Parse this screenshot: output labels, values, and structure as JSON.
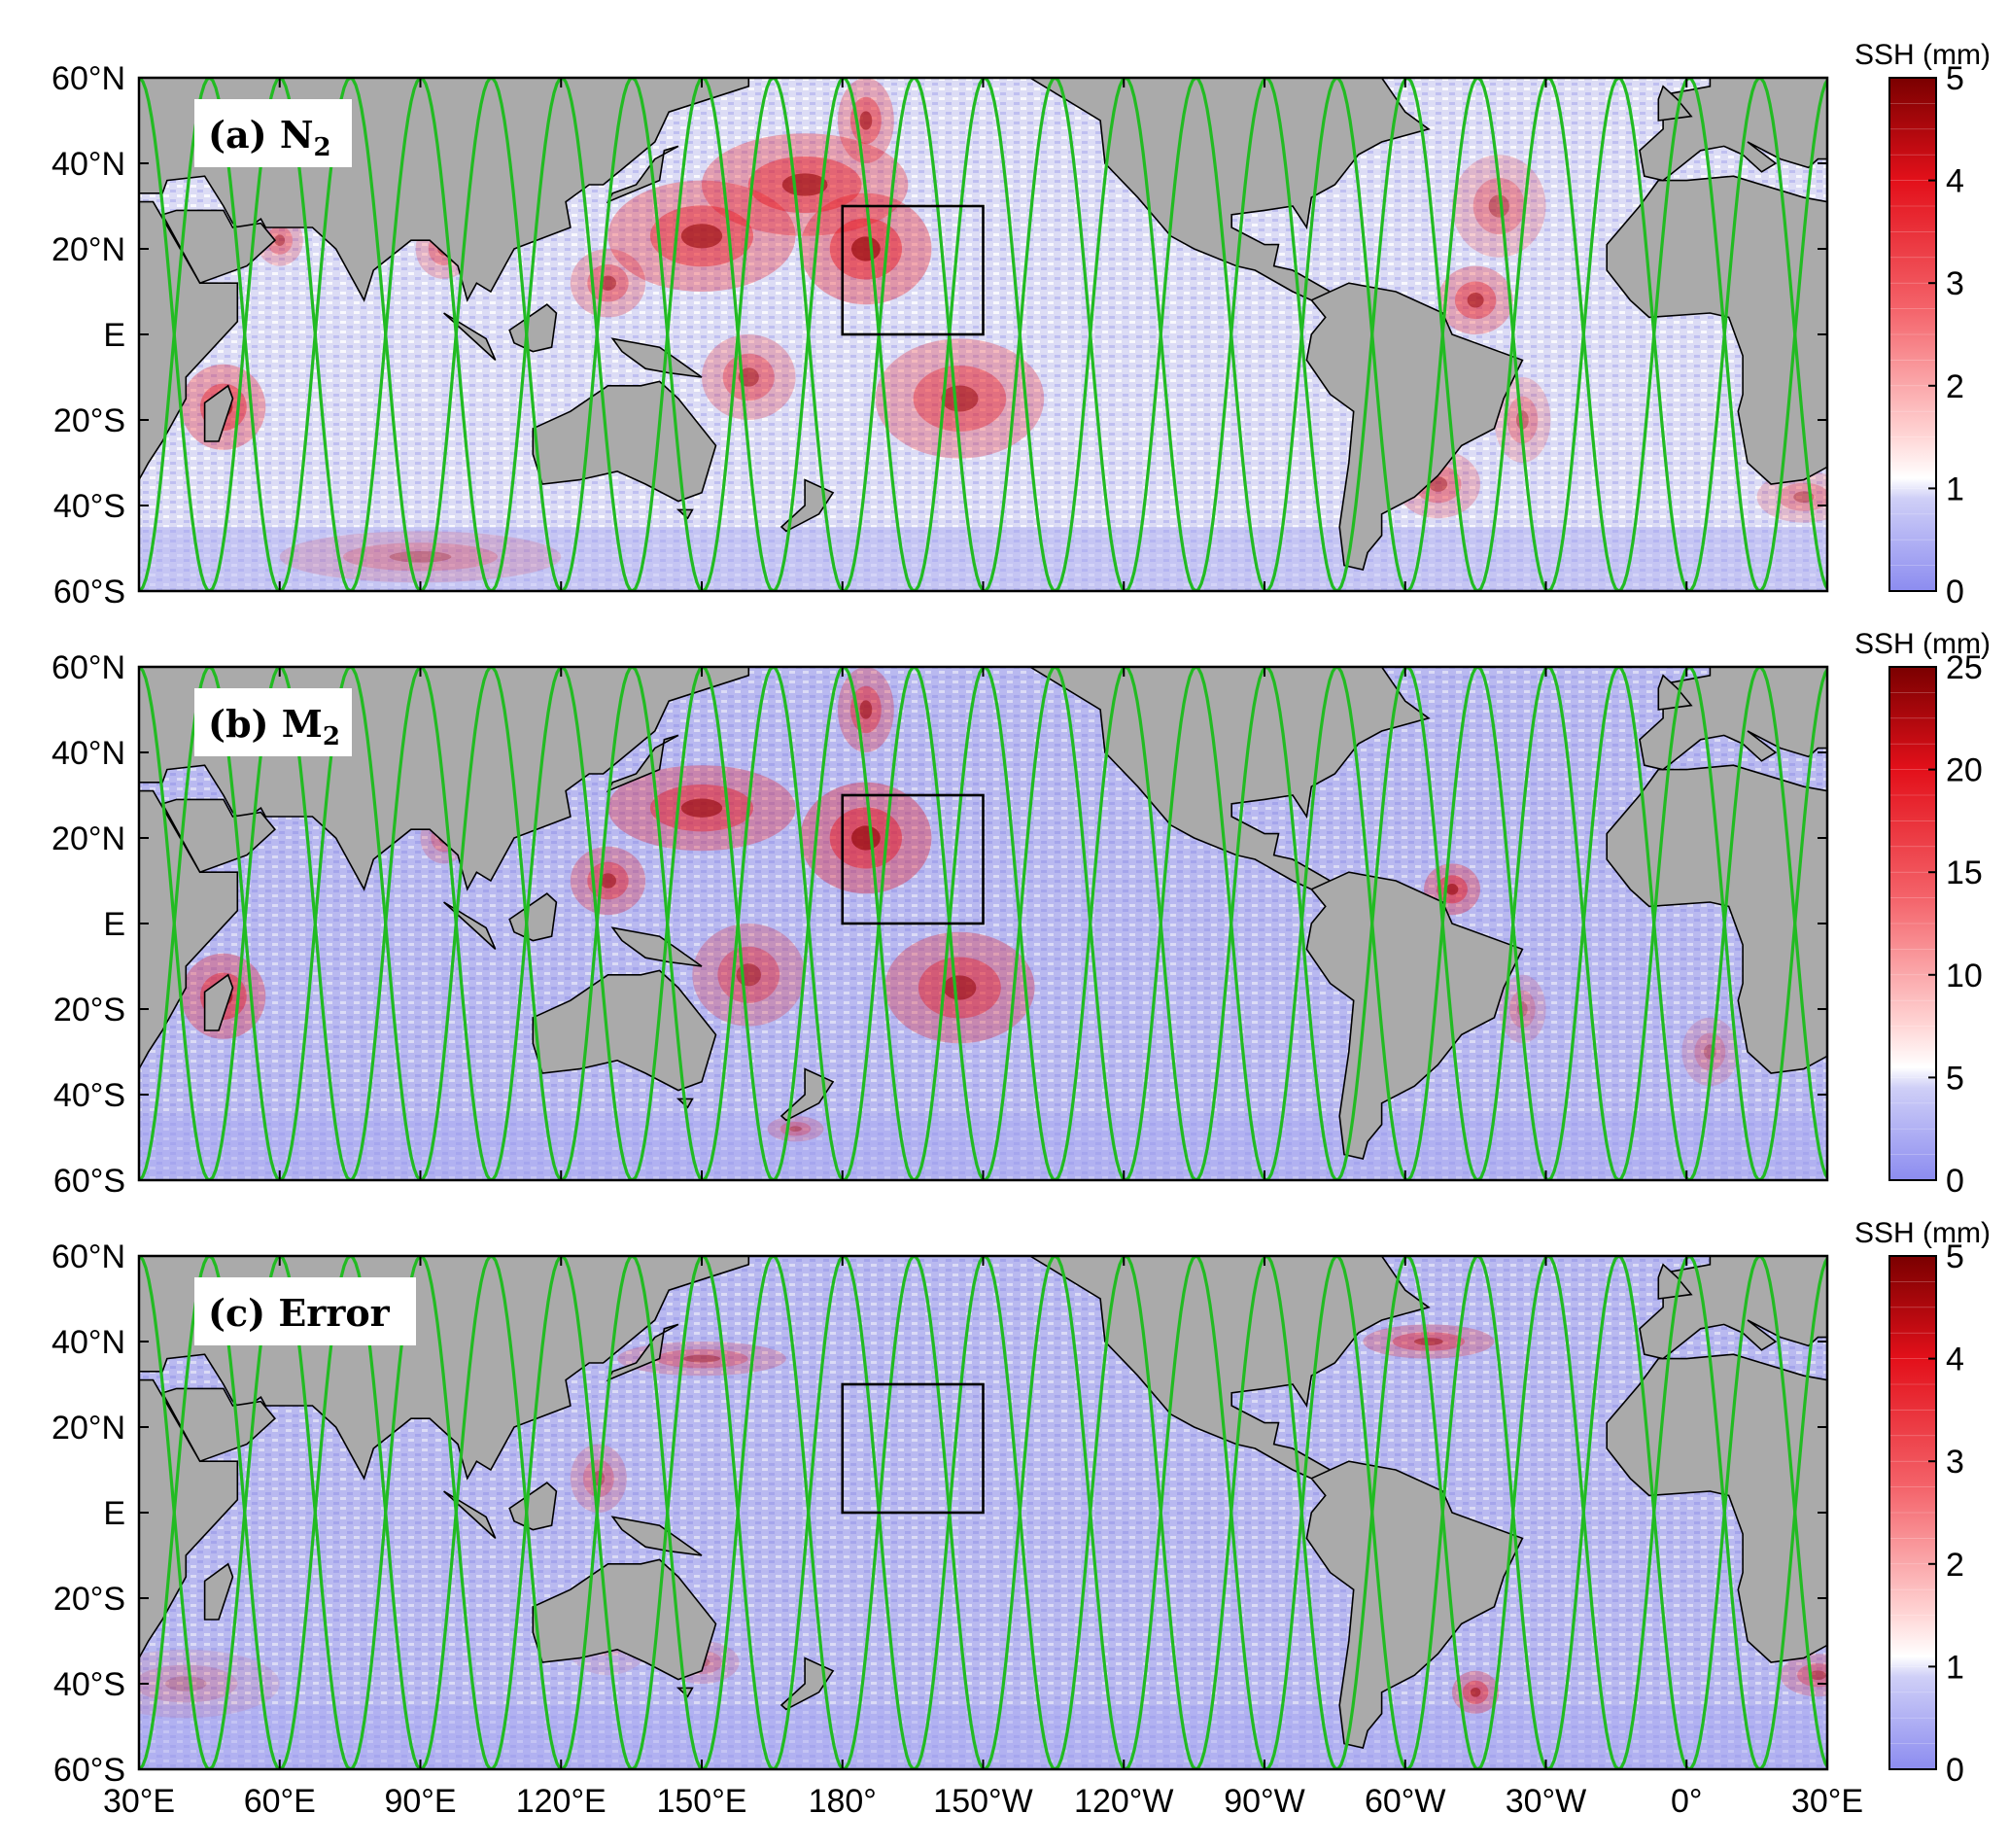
{
  "figure": {
    "x_ticks": [
      "30°E",
      "60°E",
      "90°E",
      "120°E",
      "150°E",
      "180°",
      "150°W",
      "120°W",
      "90°W",
      "60°W",
      "30°W",
      "0°",
      "30°E"
    ],
    "y_ticks": [
      "60°N",
      "40°N",
      "20°N",
      "E",
      "20°S",
      "40°S",
      "60°S"
    ],
    "colors": {
      "ocean_low": "#a9a9f2",
      "ocean_mid": "#e6e6f8",
      "land": "#aaaaaa",
      "track": "#22bb22",
      "red": "#e8141c",
      "dark_red": "#8b0000",
      "box": "#000000"
    }
  },
  "panels": [
    {
      "label_prefix": "(a) ",
      "label_main": "N",
      "label_sub": "2",
      "colorbar": {
        "title": "SSH (mm)",
        "ticks": [
          "5",
          "4",
          "3",
          "2",
          "1",
          "0"
        ],
        "range": [
          0,
          5
        ]
      }
    },
    {
      "label_prefix": "(b) ",
      "label_main": "M",
      "label_sub": "2",
      "colorbar": {
        "title": "SSH (mm)",
        "ticks": [
          "25",
          "20",
          "15",
          "10",
          "5",
          "0"
        ],
        "range": [
          0,
          25
        ]
      }
    },
    {
      "label_prefix": "(c) ",
      "label_main": "Error",
      "label_sub": "",
      "colorbar": {
        "title": "SSH (mm)",
        "ticks": [
          "5",
          "4",
          "3",
          "2",
          "1",
          "0"
        ],
        "range": [
          0,
          5
        ]
      }
    }
  ]
}
